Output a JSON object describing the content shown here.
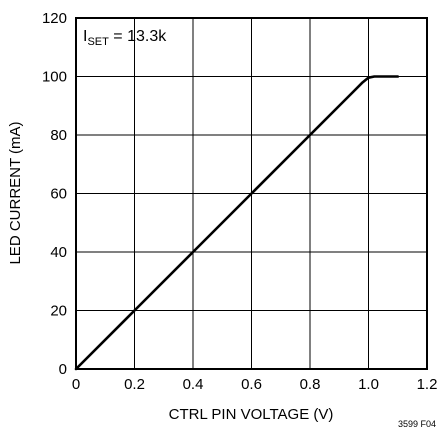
{
  "chart_data": {
    "type": "line",
    "xlabel": "CTRL PIN VOLTAGE (V)",
    "ylabel": "LED CURRENT (mA)",
    "xlim": [
      0,
      1.2
    ],
    "ylim": [
      0,
      120
    ],
    "x_ticks": [
      "0",
      "0.2",
      "0.4",
      "0.6",
      "0.8",
      "1.0",
      "1.2"
    ],
    "y_ticks": [
      "0",
      "20",
      "40",
      "60",
      "80",
      "100",
      "120"
    ],
    "grid": true,
    "annotation": {
      "main": "I",
      "subscript": "SET",
      "suffix": " = 13.3k",
      "placement": "top-left"
    },
    "series": [
      {
        "x": [
          0,
          0.2,
          0.4,
          0.6,
          0.8,
          0.9,
          0.95,
          0.98,
          1.0,
          1.02,
          1.05,
          1.1
        ],
        "y": [
          0,
          20,
          40,
          60,
          80,
          90,
          95,
          98,
          99.6,
          100,
          100,
          100
        ]
      }
    ],
    "figure_id": "3599 F04"
  }
}
